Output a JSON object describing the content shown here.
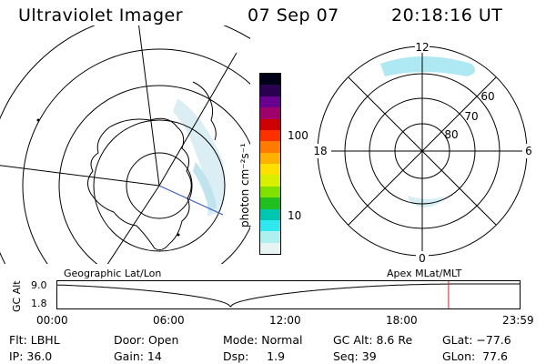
{
  "header": {
    "instrument": "Ultraviolet Imager",
    "date": "07 Sep 07",
    "time": "20:18:16 UT"
  },
  "colorbar": {
    "unit_label": "photon cm⁻²s⁻¹",
    "ticks": [
      "100",
      "10"
    ],
    "colors": [
      "#000018",
      "#2a0050",
      "#6a0090",
      "#a0006a",
      "#d00000",
      "#ff3000",
      "#ff7a00",
      "#ffb000",
      "#ffe000",
      "#d8f000",
      "#80e000",
      "#20c020",
      "#00c8b0",
      "#30e8f0",
      "#aef0f0",
      "#e8f4f4"
    ]
  },
  "right_polar": {
    "hour_labels": {
      "top": "12",
      "left": "18",
      "right": "6",
      "bottom": "0"
    },
    "lat_labels": [
      "60",
      "70",
      "80"
    ]
  },
  "map_labels": {
    "left": "Geographic Lat/Lon",
    "right": "Apex MLat/MLT"
  },
  "timeline": {
    "axis_label": "GC Alt",
    "y_ticks": [
      "9.0",
      "1.8"
    ],
    "x_ticks": [
      "00:00",
      "06:00",
      "12:00",
      "18:00",
      "23:59"
    ],
    "current_fraction": 0.845,
    "marker_color": "#e02020"
  },
  "footer": {
    "row1": [
      "Flt: LBHL",
      "Door: Open",
      "Mode: Normal",
      "GC Alt: 8.6 Re",
      "GLat: −77.6"
    ],
    "row2": [
      "IP: 36.0",
      "Gain: 14",
      "Dsp:     1.9",
      "Seq: 39",
      "GLon:  77.6"
    ]
  }
}
